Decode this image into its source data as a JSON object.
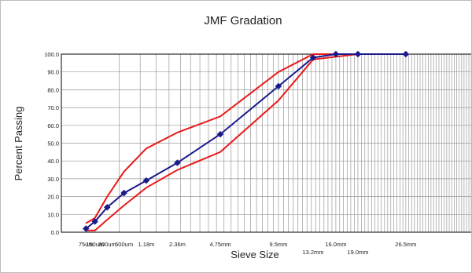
{
  "chart_data": {
    "type": "line",
    "title": "JMF Gradation",
    "xlabel": "Sieve Size",
    "ylabel": "Percent Passing",
    "ylim": [
      0,
      100
    ],
    "y_ticks": [
      "0.0",
      "10.0",
      "20.0",
      "30.0",
      "40.0",
      "50.0",
      "60.0",
      "70.0",
      "80.0",
      "90.0",
      "100.0"
    ],
    "x_scale": "0.45 power of sieve size",
    "grid": true,
    "sieve_labels_upper": [
      {
        "label": "75um",
        "size_mm": 0.075
      },
      {
        "label": "150um",
        "size_mm": 0.15
      },
      {
        "label": "300um",
        "size_mm": 0.3
      },
      {
        "label": "600um",
        "size_mm": 0.6
      },
      {
        "label": "1.18m",
        "size_mm": 1.18
      },
      {
        "label": "2.36m",
        "size_mm": 2.36
      },
      {
        "label": "4.75mm",
        "size_mm": 4.75
      },
      {
        "label": "9.5mm",
        "size_mm": 9.5
      },
      {
        "label": "16.0mm",
        "size_mm": 16.0
      },
      {
        "label": "26.5mm",
        "size_mm": 26.5
      }
    ],
    "sieve_labels_lower": [
      {
        "label": "13.2mm",
        "size_mm": 13.2
      },
      {
        "label": "19.0mm",
        "size_mm": 19.0
      }
    ],
    "series": [
      {
        "color": "#1a1a8c",
        "marker": "diamond",
        "points": [
          {
            "x": 0.075,
            "y": 2
          },
          {
            "x": 0.15,
            "y": 6
          },
          {
            "x": 0.3,
            "y": 14
          },
          {
            "x": 0.6,
            "y": 22
          },
          {
            "x": 1.18,
            "y": 29
          },
          {
            "x": 2.36,
            "y": 39
          },
          {
            "x": 4.75,
            "y": 55
          },
          {
            "x": 9.5,
            "y": 82
          },
          {
            "x": 13.2,
            "y": 98
          },
          {
            "x": 16.0,
            "y": 100
          },
          {
            "x": 19.0,
            "y": 100
          },
          {
            "x": 26.5,
            "y": 100
          }
        ]
      },
      {
        "color": "#e8191b",
        "marker": "none",
        "points": [
          {
            "x": 0.075,
            "y": 5
          },
          {
            "x": 0.15,
            "y": 8
          },
          {
            "x": 0.3,
            "y": 20
          },
          {
            "x": 0.6,
            "y": 34
          },
          {
            "x": 1.18,
            "y": 47
          },
          {
            "x": 2.36,
            "y": 56
          },
          {
            "x": 4.75,
            "y": 65
          },
          {
            "x": 9.5,
            "y": 90
          },
          {
            "x": 13.2,
            "y": 100
          },
          {
            "x": 19.0,
            "y": 100
          }
        ]
      },
      {
        "color": "#e8191b",
        "marker": "none",
        "points": [
          {
            "x": 0.075,
            "y": 1
          },
          {
            "x": 0.15,
            "y": 1
          },
          {
            "x": 0.3,
            "y": 7
          },
          {
            "x": 0.6,
            "y": 15
          },
          {
            "x": 1.18,
            "y": 25
          },
          {
            "x": 2.36,
            "y": 35
          },
          {
            "x": 4.75,
            "y": 45
          },
          {
            "x": 9.5,
            "y": 74
          },
          {
            "x": 13.2,
            "y": 97
          },
          {
            "x": 19.0,
            "y": 100
          }
        ]
      }
    ]
  }
}
